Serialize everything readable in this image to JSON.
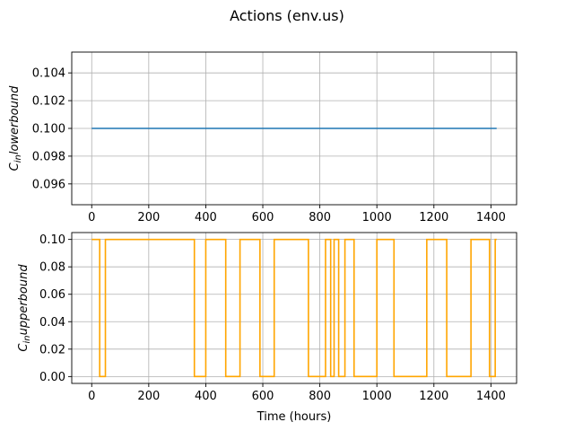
{
  "figure": {
    "title": "Actions (env.us)"
  },
  "chart_data": [
    {
      "type": "line",
      "ylabel_main": "C",
      "ylabel_sub": "in",
      "ylabel_rest": "lowerbound",
      "xlabel": "",
      "xlim": [
        -70,
        1490
      ],
      "ylim": [
        0.0945,
        0.1055
      ],
      "xticks": [
        0,
        200,
        400,
        600,
        800,
        1000,
        1200,
        1400
      ],
      "xtick_labels": [
        "0",
        "200",
        "400",
        "600",
        "800",
        "1000",
        "1200",
        "1400"
      ],
      "yticks": [
        0.096,
        0.098,
        0.1,
        0.102,
        0.104
      ],
      "ytick_labels": [
        "0.096",
        "0.098",
        "0.100",
        "0.102",
        "0.104"
      ],
      "grid": true,
      "color": "#1f77b4",
      "series": [
        {
          "x": [
            0,
            1420
          ],
          "y": [
            0.1,
            0.1
          ]
        }
      ]
    },
    {
      "type": "line",
      "ylabel_main": "C",
      "ylabel_sub": "in",
      "ylabel_rest": "upperbound",
      "xlabel": "Time (hours)",
      "xlim": [
        -70,
        1490
      ],
      "ylim": [
        -0.005,
        0.105
      ],
      "xticks": [
        0,
        200,
        400,
        600,
        800,
        1000,
        1200,
        1400
      ],
      "xtick_labels": [
        "0",
        "200",
        "400",
        "600",
        "800",
        "1000",
        "1200",
        "1400"
      ],
      "yticks": [
        0.0,
        0.02,
        0.04,
        0.06,
        0.08,
        0.1
      ],
      "ytick_labels": [
        "0.00",
        "0.02",
        "0.04",
        "0.06",
        "0.08",
        "0.10"
      ],
      "grid": true,
      "color": "#ffa500",
      "series": [
        {
          "steps": [
            [
              0,
              0.1
            ],
            [
              28,
              0.0
            ],
            [
              48,
              0.1
            ],
            [
              360,
              0.0
            ],
            [
              400,
              0.1
            ],
            [
              470,
              0.0
            ],
            [
              520,
              0.1
            ],
            [
              590,
              0.0
            ],
            [
              640,
              0.1
            ],
            [
              760,
              0.0
            ],
            [
              820,
              0.1
            ],
            [
              838,
              0.0
            ],
            [
              850,
              0.1
            ],
            [
              866,
              0.0
            ],
            [
              888,
              0.1
            ],
            [
              920,
              0.0
            ],
            [
              1000,
              0.1
            ],
            [
              1060,
              0.0
            ],
            [
              1175,
              0.1
            ],
            [
              1245,
              0.0
            ],
            [
              1330,
              0.1
            ],
            [
              1395,
              0.0
            ],
            [
              1415,
              0.1
            ],
            [
              1420,
              0.1
            ]
          ]
        }
      ]
    }
  ]
}
